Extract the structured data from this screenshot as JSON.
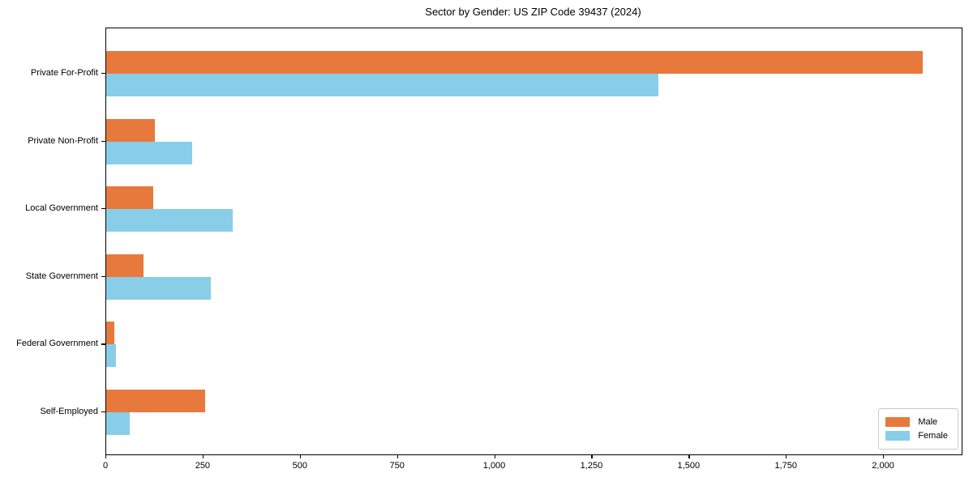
{
  "chart_data": {
    "type": "bar",
    "orientation": "horizontal",
    "title": "Sector by Gender: US ZIP Code 39437 (2024)",
    "categories": [
      "Private For-Profit",
      "Private Non-Profit",
      "Local Government",
      "State Government",
      "Federal Government",
      "Self-Employed"
    ],
    "series": [
      {
        "name": "Male",
        "color": "#e8793d",
        "values": [
          2100,
          125,
          120,
          95,
          20,
          255
        ]
      },
      {
        "name": "Female",
        "color": "#88cee9",
        "values": [
          1420,
          220,
          325,
          270,
          25,
          60
        ]
      }
    ],
    "xlabel": "",
    "ylabel": "",
    "xlim": [
      0,
      2200
    ],
    "xticks": [
      0,
      250,
      500,
      750,
      1000,
      1250,
      1500,
      1750,
      2000
    ],
    "xtick_labels": [
      "0",
      "250",
      "500",
      "750",
      "1,000",
      "1,250",
      "1,500",
      "1,750",
      "2,000"
    ],
    "grid": false,
    "legend_position": "lower right"
  },
  "legend": {
    "items": [
      {
        "label": "Male"
      },
      {
        "label": "Female"
      }
    ]
  }
}
